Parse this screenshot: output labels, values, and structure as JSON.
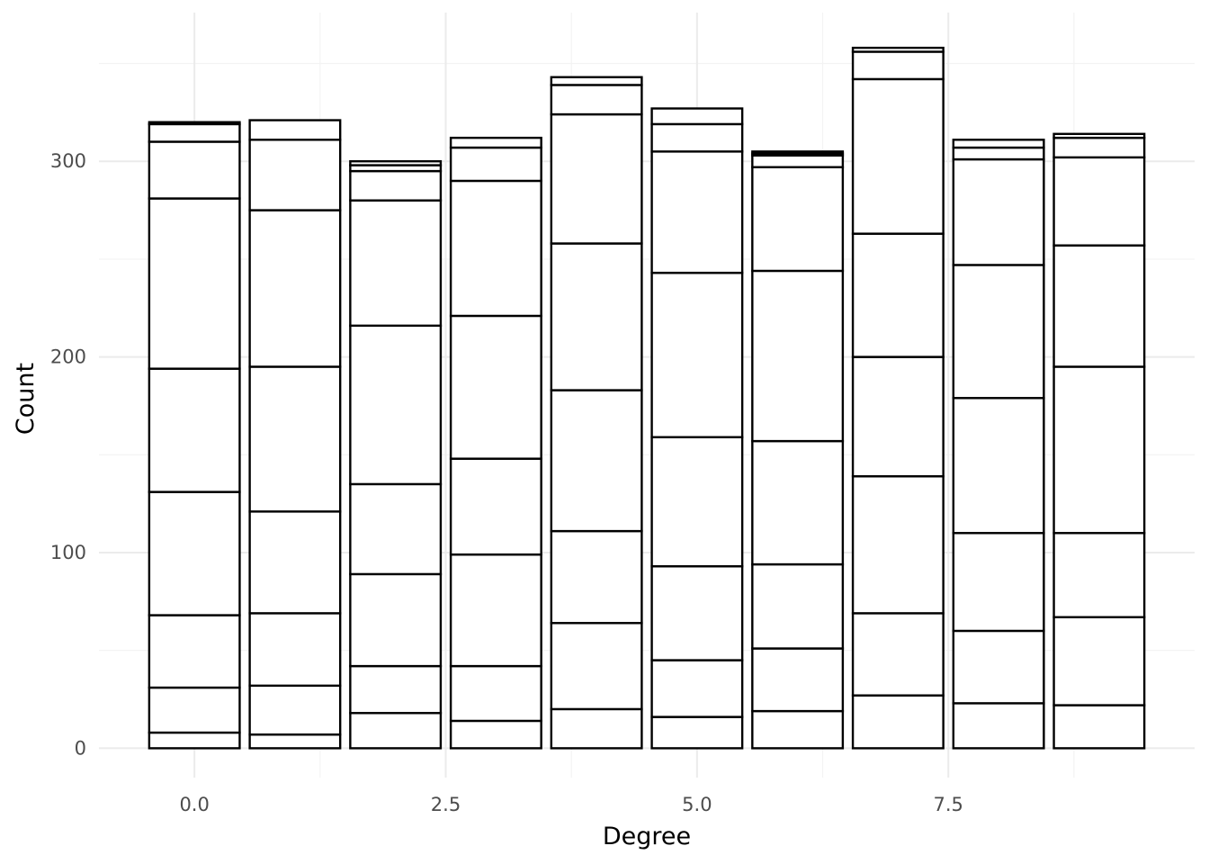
{
  "chart_data": {
    "type": "bar",
    "stacked": true,
    "x": [
      0,
      1,
      2,
      3,
      4,
      5,
      6,
      7,
      8,
      9
    ],
    "xlabel": "Degree",
    "ylabel": "Count",
    "xlim": [
      -0.95,
      9.95
    ],
    "ylim": [
      -15,
      376
    ],
    "x_ticks": [
      0,
      2.5,
      5,
      7.5
    ],
    "x_tick_labels": [
      "0.0",
      "2.5",
      "5.0",
      "7.5"
    ],
    "y_ticks": [
      0,
      100,
      200,
      300
    ],
    "y_tick_labels": [
      "0",
      "100",
      "200",
      "300"
    ],
    "grid": true,
    "fill_color": "#ffffff",
    "outline_color": "#000000",
    "stack_boundaries": [
      [
        0,
        8,
        31,
        68,
        131,
        194,
        281,
        310,
        319,
        320
      ],
      [
        0,
        7,
        32,
        69,
        121,
        195,
        275,
        311,
        321
      ],
      [
        0,
        18,
        42,
        89,
        135,
        216,
        280,
        295,
        298,
        300
      ],
      [
        0,
        14,
        42,
        99,
        148,
        221,
        290,
        307,
        312
      ],
      [
        0,
        20,
        64,
        111,
        183,
        258,
        324,
        339,
        343
      ],
      [
        0,
        16,
        45,
        93,
        159,
        243,
        305,
        319,
        327
      ],
      [
        0,
        19,
        51,
        94,
        157,
        244,
        297,
        303,
        304,
        305
      ],
      [
        0,
        27,
        69,
        139,
        200,
        263,
        342,
        356,
        358
      ],
      [
        0,
        23,
        60,
        110,
        179,
        247,
        301,
        307,
        311
      ],
      [
        0,
        22,
        67,
        110,
        195,
        257,
        302,
        312,
        314
      ]
    ]
  }
}
